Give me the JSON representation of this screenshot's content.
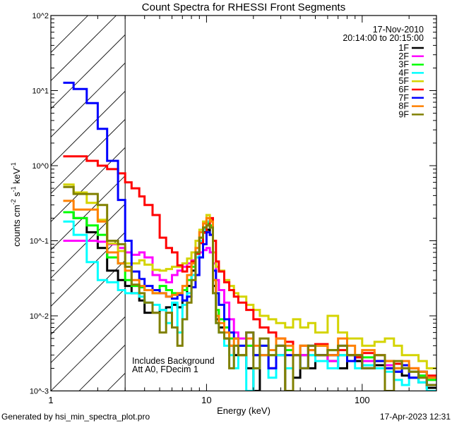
{
  "chart_data": {
    "type": "line",
    "step": true,
    "title": "Count Spectra for RHESSI Front Segments",
    "xlabel": "Energy (keV)",
    "ylabel": {
      "base": "counts cm",
      "e1": "-2",
      "mid": " s",
      "e2": "-1",
      "mid2": " keV",
      "e3": "-1"
    },
    "xscale": "log",
    "yscale": "log",
    "xlim": [
      1,
      300
    ],
    "ylim": [
      0.001,
      100
    ],
    "xticks": [
      1,
      10,
      100
    ],
    "xtick_labels": [
      "1",
      "10",
      "100"
    ],
    "yticks": [
      0.001,
      0.01,
      0.1,
      1,
      10,
      100
    ],
    "ytick_labels": [
      "10^-3",
      "10^-2",
      "10^-1",
      "10^0",
      "10^1",
      "10^2"
    ],
    "grid": false,
    "shaded_region_keV": [
      1,
      3
    ],
    "legend": {
      "placement": "top-right",
      "date": "17-Nov-2010",
      "time_range": "20:14:00 to 20:15:00"
    },
    "annotations": [
      "Includes Background",
      "Att A0, FDecim 1"
    ],
    "energy_edges": [
      1.2,
      1.4,
      1.7,
      2.0,
      2.3,
      2.7,
      3.0,
      3.3,
      3.7,
      4.0,
      4.5,
      5.0,
      5.5,
      6.0,
      6.5,
      7.0,
      7.5,
      8.0,
      8.5,
      9.0,
      9.5,
      10,
      10.5,
      11,
      11.5,
      12,
      13,
      14,
      15,
      16,
      18,
      20,
      22,
      25,
      28,
      32,
      36,
      40,
      45,
      50,
      60,
      70,
      80,
      90,
      100,
      120,
      140,
      160,
      180,
      200,
      230,
      260,
      300
    ],
    "series": [
      {
        "name": "1F",
        "color": "#000000",
        "values": [
          0.24,
          0.2,
          0.13,
          0.08,
          0.04,
          0.03,
          0.025,
          0.02,
          0.016,
          0.011,
          0.011,
          0.012,
          0.013,
          0.014,
          0.013,
          0.016,
          0.025,
          0.04,
          0.07,
          0.1,
          0.13,
          0.14,
          0.12,
          0.025,
          0.009,
          0.007,
          0.005,
          0.004,
          0.003,
          0.003,
          0.002,
          0.001,
          0.003,
          0.002,
          0.003,
          0.001,
          0.0015,
          0.003,
          0.002,
          0.003,
          0.0025,
          0.002,
          0.003,
          0.0025,
          0.002,
          0.0022,
          0.002,
          0.0018,
          0.0016,
          0.0015,
          0.0013,
          0.0011
        ]
      },
      {
        "name": "2F",
        "color": "#ff00ff",
        "values": [
          0.1,
          0.1,
          0.1,
          0.097,
          0.09,
          0.08,
          0.07,
          0.065,
          0.07,
          0.06,
          0.035,
          0.03,
          0.028,
          0.035,
          0.04,
          0.045,
          0.05,
          0.055,
          0.06,
          0.07,
          0.075,
          0.08,
          0.07,
          0.05,
          0.03,
          0.022,
          0.015,
          0.009,
          0.006,
          0.005,
          0.004,
          0.003,
          0.003,
          0.002,
          0.004,
          0.003,
          0.003,
          0.003,
          0.004,
          0.003,
          0.0025,
          0.003,
          0.003,
          0.0028,
          0.0025,
          0.003,
          0.0022,
          0.002,
          0.002,
          0.0018,
          0.0016,
          0.0014
        ]
      },
      {
        "name": "3F",
        "color": "#00ff00",
        "values": [
          0.24,
          0.2,
          0.16,
          0.12,
          0.06,
          0.05,
          0.03,
          0.025,
          0.024,
          0.022,
          0.02,
          0.025,
          0.022,
          0.02,
          0.02,
          0.022,
          0.03,
          0.045,
          0.07,
          0.11,
          0.15,
          0.17,
          0.16,
          0.03,
          0.012,
          0.009,
          0.007,
          0.005,
          0.005,
          0.004,
          0.004,
          0.003,
          0.004,
          0.003,
          0.004,
          0.0035,
          0.003,
          0.004,
          0.003,
          0.004,
          0.0035,
          0.003,
          0.003,
          0.003,
          0.0028,
          0.0025,
          0.0025,
          0.002,
          0.002,
          0.0018,
          0.0016,
          0.0014
        ]
      },
      {
        "name": "4F",
        "color": "#00ffff",
        "values": [
          0.18,
          0.12,
          0.052,
          0.03,
          0.028,
          0.022,
          0.02,
          0.02,
          0.018,
          0.015,
          0.014,
          0.012,
          0.008,
          0.015,
          0.006,
          0.014,
          0.02,
          0.035,
          0.06,
          0.1,
          0.14,
          0.18,
          0.15,
          0.02,
          0.008,
          0.006,
          0.004,
          0.003,
          0.002,
          0.003,
          0.001,
          0.002,
          0.003,
          0.0015,
          0.003,
          0.002,
          0.003,
          0.002,
          0.003,
          0.0025,
          0.002,
          0.003,
          0.0025,
          0.002,
          0.0022,
          0.002,
          0.0018,
          0.0014,
          0.0012,
          0.0015,
          0.0013,
          0.001
        ]
      },
      {
        "name": "5F",
        "color": "#d4d400",
        "values": [
          0.56,
          0.44,
          0.32,
          0.19,
          0.092,
          0.073,
          0.05,
          0.05,
          0.055,
          0.048,
          0.041,
          0.04,
          0.042,
          0.045,
          0.045,
          0.05,
          0.058,
          0.07,
          0.1,
          0.14,
          0.18,
          0.22,
          0.19,
          0.07,
          0.045,
          0.04,
          0.03,
          0.025,
          0.02,
          0.018,
          0.014,
          0.012,
          0.01,
          0.009,
          0.008,
          0.007,
          0.009,
          0.007,
          0.008,
          0.006,
          0.01,
          0.006,
          0.005,
          0.005,
          0.004,
          0.0045,
          0.005,
          0.004,
          0.003,
          0.003,
          0.0025,
          0.002
        ]
      },
      {
        "name": "6F",
        "color": "#ff0000",
        "values": [
          1.33,
          1.33,
          1.16,
          1.0,
          0.9,
          0.79,
          0.6,
          0.5,
          0.39,
          0.3,
          0.22,
          0.11,
          0.08,
          0.07,
          0.047,
          0.039,
          0.045,
          0.053,
          0.067,
          0.093,
          0.128,
          0.16,
          0.2,
          0.1,
          0.053,
          0.039,
          0.028,
          0.022,
          0.018,
          0.015,
          0.012,
          0.009,
          0.007,
          0.006,
          0.005,
          0.0045,
          0.003,
          0.004,
          0.0035,
          0.0042,
          0.003,
          0.0035,
          0.003,
          0.0028,
          0.0032,
          0.0025,
          0.0025,
          0.0023,
          0.0022,
          0.002,
          0.0018,
          0.0016
        ]
      },
      {
        "name": "7F",
        "color": "#0000ff",
        "values": [
          12.7,
          10.5,
          6.8,
          3.1,
          1.16,
          0.35,
          0.1,
          0.039,
          0.031,
          0.025,
          0.022,
          0.02,
          0.018,
          0.017,
          0.019,
          0.016,
          0.018,
          0.024,
          0.035,
          0.06,
          0.09,
          0.13,
          0.12,
          0.04,
          0.02,
          0.014,
          0.009,
          0.006,
          0.005,
          0.004,
          0.006,
          0.003,
          0.004,
          0.002,
          0.004,
          0.003,
          0.003,
          0.002,
          0.004,
          0.003,
          0.003,
          0.004,
          0.0025,
          0.003,
          0.002,
          0.0025,
          0.002,
          0.0018,
          0.0022,
          0.0015,
          0.0018,
          0.0012
        ]
      },
      {
        "name": "8F",
        "color": "#ff8000",
        "values": [
          0.34,
          0.26,
          0.26,
          0.18,
          0.07,
          0.05,
          0.04,
          0.03,
          0.025,
          0.022,
          0.02,
          0.02,
          0.018,
          0.019,
          0.02,
          0.025,
          0.035,
          0.05,
          0.08,
          0.13,
          0.17,
          0.2,
          0.18,
          0.03,
          0.01,
          0.008,
          0.006,
          0.004,
          0.005,
          0.003,
          0.005,
          0.004,
          0.003,
          0.0035,
          0.005,
          0.004,
          0.003,
          0.004,
          0.0035,
          0.004,
          0.003,
          0.005,
          0.004,
          0.003,
          0.0035,
          0.003,
          0.0025,
          0.002,
          0.0025,
          0.002,
          0.0018,
          0.0015
        ]
      },
      {
        "name": "9F",
        "color": "#808000",
        "values": [
          0.52,
          0.42,
          0.42,
          0.3,
          0.1,
          0.09,
          0.045,
          0.026,
          0.02,
          0.015,
          0.011,
          0.006,
          0.011,
          0.007,
          0.004,
          0.009,
          0.015,
          0.03,
          0.07,
          0.11,
          0.15,
          0.16,
          0.15,
          0.02,
          0.008,
          0.006,
          0.005,
          0.002,
          0.004,
          0.003,
          0.006,
          0.002,
          0.005,
          0.003,
          0.004,
          0.001,
          0.003,
          0.002,
          0.004,
          0.003,
          0.0035,
          0.004,
          0.003,
          0.003,
          0.002,
          0.003,
          0.001,
          0.0025,
          0.002,
          0.0018,
          0.0015,
          0.0012
        ]
      }
    ]
  },
  "footer": {
    "generated_by": "Generated by hsi_min_spectra_plot.pro",
    "timestamp": "17-Apr-2023 12:31"
  }
}
